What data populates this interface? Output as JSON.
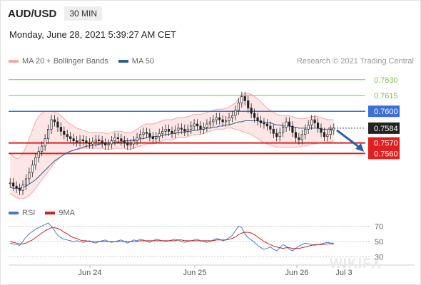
{
  "header": {
    "symbol": "AUD/USD",
    "timeframe": "30 MIN",
    "datetime": "Monday, June 28, 2021 5:39:27 AM CET"
  },
  "legend": {
    "bollinger_label": "MA 20 + Bollinger Bands",
    "ma50_label": "MA 50",
    "credit": "Research © 2021 Trading Central"
  },
  "rsi_legend": {
    "rsi_label": "RSI",
    "ma9_label": "9MA"
  },
  "watermark": "WIKIFX",
  "colors": {
    "bollinger": "#f4a7a7",
    "bollinger_fill": "#fde3e3",
    "ma50": "#2f5f8f",
    "resistance_green": "#7bbf4a",
    "resistance_blue": "#3b6fd6",
    "support_red": "#e02020",
    "current_price": "#222222",
    "arrow": "#2f5f9f",
    "rsi": "#4a78d0",
    "rsi_ma": "#cc2222"
  },
  "chart_data": [
    {
      "type": "candlestick",
      "title": "AUD/USD",
      "x_ticks": [
        "Jun 24",
        "Jun 25",
        "Jun 26",
        "Jul 3"
      ],
      "ylim": [
        0.7515,
        0.764
      ],
      "levels": [
        {
          "label": "0.7630",
          "value": 0.763,
          "kind": "resistance"
        },
        {
          "label": "0.7615",
          "value": 0.7615,
          "kind": "resistance"
        },
        {
          "label": "0.7600",
          "value": 0.76,
          "kind": "pivot"
        },
        {
          "label": "0.7584",
          "value": 0.7584,
          "kind": "current"
        },
        {
          "label": "0.7570",
          "value": 0.757,
          "kind": "support"
        },
        {
          "label": "0.7560",
          "value": 0.756,
          "kind": "support"
        }
      ],
      "close": [
        0.7532,
        0.7529,
        0.7527,
        0.7525,
        0.753,
        0.7536,
        0.7542,
        0.7549,
        0.7556,
        0.7562,
        0.7567,
        0.7574,
        0.7583,
        0.7592,
        0.759,
        0.7585,
        0.7581,
        0.7578,
        0.7576,
        0.7574,
        0.7572,
        0.7571,
        0.7573,
        0.7572,
        0.757,
        0.7569,
        0.7571,
        0.7573,
        0.7572,
        0.757,
        0.7568,
        0.7569,
        0.7572,
        0.7575,
        0.7574,
        0.7572,
        0.757,
        0.7568,
        0.7569,
        0.7572,
        0.7575,
        0.7578,
        0.758,
        0.7579,
        0.7576,
        0.7574,
        0.7576,
        0.7579,
        0.7581,
        0.7583,
        0.7581,
        0.7579,
        0.7582,
        0.7584,
        0.7583,
        0.7581,
        0.7583,
        0.7586,
        0.7588,
        0.7586,
        0.7583,
        0.7585,
        0.7588,
        0.759,
        0.7592,
        0.7594,
        0.7592,
        0.759,
        0.7591,
        0.7594,
        0.7596,
        0.7601,
        0.7608,
        0.7614,
        0.761,
        0.7603,
        0.7598,
        0.7594,
        0.7591,
        0.7589,
        0.7588,
        0.7586,
        0.7583,
        0.7579,
        0.7576,
        0.758,
        0.7585,
        0.759,
        0.7586,
        0.758,
        0.7575,
        0.7573,
        0.7578,
        0.7583,
        0.7587,
        0.7592,
        0.7589,
        0.7584,
        0.758,
        0.7576,
        0.7578,
        0.7582,
        0.7584
      ],
      "bb_upper": [
        0.756,
        0.7557,
        0.7555,
        0.7556,
        0.756,
        0.7566,
        0.7574,
        0.7582,
        0.759,
        0.7595,
        0.7598,
        0.76,
        0.76,
        0.76,
        0.7599,
        0.7598,
        0.7596,
        0.7593,
        0.759,
        0.7588,
        0.7586,
        0.7584,
        0.7583,
        0.7582,
        0.7581,
        0.758,
        0.758,
        0.758,
        0.758,
        0.758,
        0.7579,
        0.7579,
        0.758,
        0.7581,
        0.7581,
        0.7581,
        0.758,
        0.758,
        0.758,
        0.7581,
        0.7583,
        0.7585,
        0.7587,
        0.7588,
        0.7588,
        0.7588,
        0.7589,
        0.759,
        0.7591,
        0.7592,
        0.7592,
        0.7592,
        0.7593,
        0.7594,
        0.7594,
        0.7594,
        0.7595,
        0.7596,
        0.7597,
        0.7597,
        0.7597,
        0.7598,
        0.7599,
        0.76,
        0.7601,
        0.7602,
        0.7602,
        0.7602,
        0.7603,
        0.7604,
        0.7606,
        0.7608,
        0.7612,
        0.7616,
        0.7617,
        0.7617,
        0.7616,
        0.7614,
        0.7612,
        0.7609,
        0.7606,
        0.7603,
        0.7601,
        0.7599,
        0.7597,
        0.7596,
        0.7596,
        0.7596,
        0.7596,
        0.7595,
        0.7594,
        0.7593,
        0.7593,
        0.7593,
        0.7594,
        0.7595,
        0.7595,
        0.7595,
        0.7594,
        0.7593,
        0.7592,
        0.7592,
        0.7592
      ],
      "bb_lower": [
        0.7522,
        0.752,
        0.7518,
        0.7517,
        0.7517,
        0.7518,
        0.752,
        0.7523,
        0.7527,
        0.7531,
        0.7535,
        0.7539,
        0.7543,
        0.7547,
        0.7551,
        0.7554,
        0.7557,
        0.7559,
        0.7561,
        0.7562,
        0.7563,
        0.7564,
        0.7564,
        0.7565,
        0.7565,
        0.7565,
        0.7565,
        0.7565,
        0.7565,
        0.7565,
        0.7564,
        0.7564,
        0.7564,
        0.7565,
        0.7565,
        0.7565,
        0.7565,
        0.7564,
        0.7564,
        0.7565,
        0.7566,
        0.7567,
        0.7568,
        0.7569,
        0.7569,
        0.7569,
        0.757,
        0.7571,
        0.7572,
        0.7573,
        0.7573,
        0.7573,
        0.7574,
        0.7575,
        0.7575,
        0.7575,
        0.7576,
        0.7577,
        0.7578,
        0.7578,
        0.7578,
        0.7579,
        0.758,
        0.7581,
        0.7582,
        0.7583,
        0.7583,
        0.7583,
        0.7584,
        0.7584,
        0.7584,
        0.7583,
        0.7582,
        0.7581,
        0.758,
        0.7579,
        0.7578,
        0.7576,
        0.7574,
        0.7572,
        0.757,
        0.7569,
        0.7568,
        0.7567,
        0.7566,
        0.7566,
        0.7566,
        0.7566,
        0.7566,
        0.7566,
        0.7566,
        0.7566,
        0.7567,
        0.7567,
        0.7568,
        0.7569,
        0.7569,
        0.757,
        0.757,
        0.757,
        0.7571,
        0.7571,
        0.7572
      ],
      "ma50": [
        0.7528,
        0.7527,
        0.7527,
        0.7527,
        0.7528,
        0.7529,
        0.7531,
        0.7533,
        0.7535,
        0.7538,
        0.7541,
        0.7544,
        0.7547,
        0.755,
        0.7553,
        0.7555,
        0.7557,
        0.7559,
        0.7561,
        0.7562,
        0.7563,
        0.7564,
        0.7565,
        0.7566,
        0.7567,
        0.7567,
        0.7568,
        0.7568,
        0.7569,
        0.7569,
        0.757,
        0.757,
        0.757,
        0.7571,
        0.7571,
        0.7571,
        0.7572,
        0.7572,
        0.7572,
        0.7573,
        0.7573,
        0.7574,
        0.7574,
        0.7575,
        0.7575,
        0.7576,
        0.7576,
        0.7577,
        0.7577,
        0.7578,
        0.7578,
        0.7579,
        0.7579,
        0.758,
        0.758,
        0.758,
        0.7581,
        0.7581,
        0.7582,
        0.7582,
        0.7583,
        0.7583,
        0.7584,
        0.7584,
        0.7585,
        0.7585,
        0.7586,
        0.7586,
        0.7587,
        0.7587,
        0.7588,
        0.7589,
        0.759,
        0.759,
        0.7591,
        0.7591,
        0.7591,
        0.7591,
        0.7591,
        0.759,
        0.759,
        0.7589,
        0.7589,
        0.7588,
        0.7587,
        0.7587,
        0.7586,
        0.7586,
        0.7586,
        0.7585,
        0.7585,
        0.7584,
        0.7584,
        0.7584,
        0.7584,
        0.7584,
        0.7584,
        0.7584,
        0.7583,
        0.7583,
        0.7583,
        0.7583,
        0.7583
      ]
    },
    {
      "type": "line",
      "title": "RSI",
      "ylim": [
        25,
        75
      ],
      "y_ticks": [
        "70",
        "50",
        "30"
      ],
      "series": [
        {
          "name": "RSI",
          "values": [
            48,
            47,
            46,
            45,
            50,
            56,
            60,
            63,
            66,
            68,
            70,
            72,
            74,
            70,
            64,
            58,
            55,
            53,
            52,
            51,
            50,
            51,
            50,
            49,
            50,
            51,
            49,
            48,
            50,
            51,
            52,
            50,
            49,
            50,
            51,
            52,
            50,
            48,
            50,
            52,
            51,
            53,
            52,
            50,
            49,
            51,
            53,
            52,
            51,
            50,
            51,
            52,
            53,
            52,
            50,
            49,
            50,
            51,
            52,
            53,
            51,
            50,
            49,
            50,
            52,
            54,
            53,
            51,
            52,
            55,
            58,
            64,
            70,
            68,
            60,
            55,
            52,
            49,
            45,
            42,
            40,
            41,
            43,
            40,
            38,
            42,
            46,
            44,
            40,
            38,
            41,
            44,
            46,
            48,
            47,
            46,
            45,
            46,
            47,
            48,
            49,
            48,
            48
          ]
        },
        {
          "name": "9MA",
          "values": [
            50,
            49,
            48,
            47,
            47,
            48,
            50,
            52,
            55,
            58,
            61,
            64,
            66,
            68,
            68,
            67,
            65,
            62,
            60,
            57,
            55,
            54,
            52,
            51,
            51,
            50,
            50,
            50,
            50,
            50,
            50,
            50,
            50,
            50,
            50,
            50,
            50,
            50,
            50,
            50,
            50,
            51,
            51,
            51,
            51,
            51,
            51,
            51,
            51,
            51,
            51,
            51,
            51,
            52,
            52,
            51,
            51,
            51,
            51,
            51,
            51,
            51,
            51,
            51,
            51,
            52,
            52,
            52,
            52,
            53,
            54,
            56,
            59,
            61,
            62,
            62,
            61,
            59,
            56,
            53,
            50,
            48,
            46,
            44,
            43,
            42,
            41,
            42,
            42,
            41,
            41,
            41,
            42,
            43,
            44,
            45,
            46,
            46,
            46,
            46,
            47,
            47,
            47
          ]
        }
      ]
    }
  ]
}
